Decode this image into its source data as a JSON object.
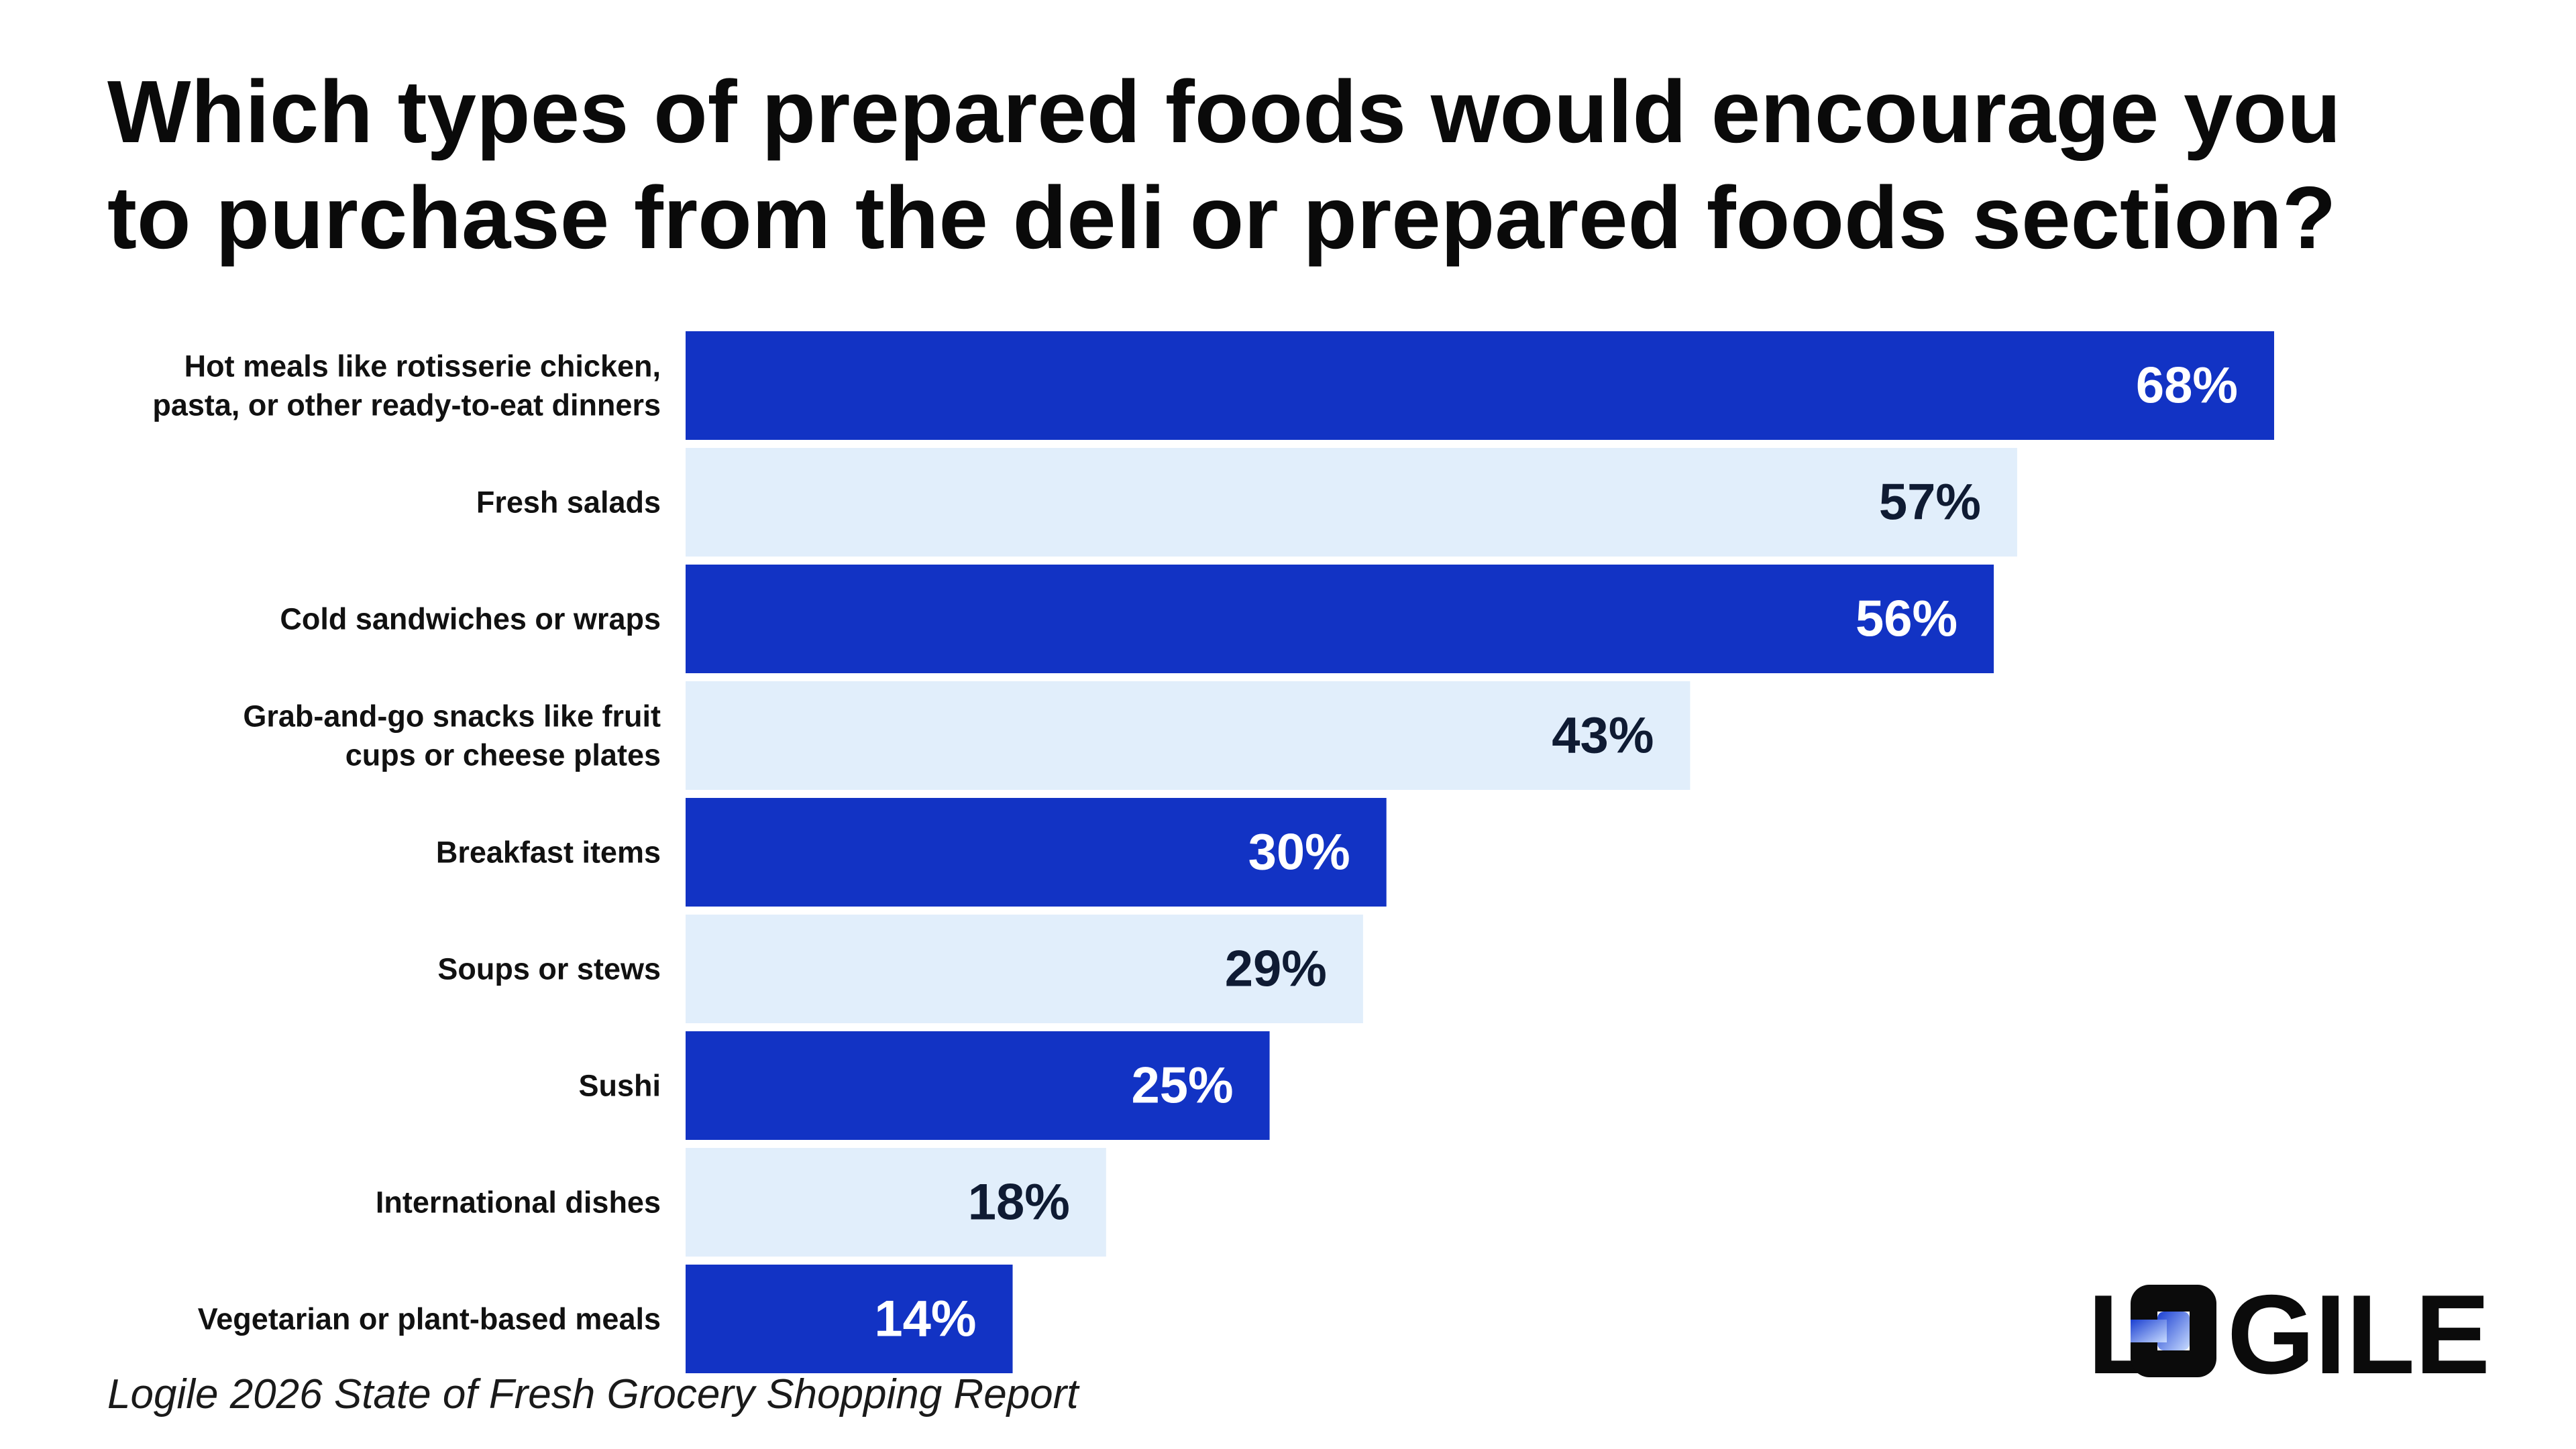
{
  "title_lines": [
    "Which types of prepared foods would encourage you",
    "to purchase from the deli or prepared foods section?"
  ],
  "source": "Logile 2026 State of Fresh Grocery Shopping Report",
  "logo": {
    "wordmark": "LOGILE",
    "colors": {
      "text": "#0b0b0b",
      "mark_gradient": [
        "#1a3fd1",
        "#c9dcff"
      ]
    }
  },
  "colors": {
    "dark_bar": "#1233c4",
    "light_bar": "#e1eefb",
    "dark_bar_label": "#ffffff",
    "light_bar_label": "#0f1b33"
  },
  "chart_data": {
    "type": "bar",
    "orientation": "horizontal",
    "categories": [
      [
        "Hot meals like rotisserie chicken,",
        "pasta, or other ready-to-eat dinners"
      ],
      [
        "Fresh salads"
      ],
      [
        "Cold sandwiches or wraps"
      ],
      [
        "Grab-and-go snacks like fruit",
        "cups or cheese plates"
      ],
      [
        "Breakfast items"
      ],
      [
        "Soups or stews"
      ],
      [
        "Sushi"
      ],
      [
        "International dishes"
      ],
      [
        "Vegetarian or plant-based meals"
      ]
    ],
    "values": [
      68,
      57,
      56,
      43,
      30,
      29,
      25,
      18,
      14
    ],
    "value_labels": [
      "68%",
      "57%",
      "56%",
      "43%",
      "30%",
      "29%",
      "25%",
      "18%",
      "14%"
    ],
    "bar_styles": [
      "dark",
      "light",
      "dark",
      "light",
      "dark",
      "light",
      "dark",
      "light",
      "dark"
    ],
    "unit": "%",
    "xlim": [
      0,
      68
    ],
    "grid": false,
    "legend": "none"
  }
}
